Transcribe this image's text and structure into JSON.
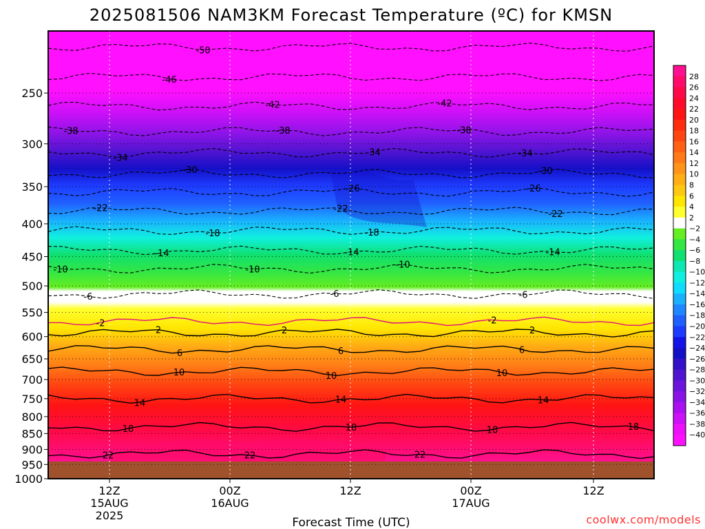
{
  "chart_data": {
    "type": "heatmap",
    "title": "2025081506 NAM3KM Forecast Temperature (ºC) for KMSN",
    "xlabel": "Forecast Time (UTC)",
    "ylabel": "",
    "y_scale": "log-pressure",
    "ylim": [
      1000,
      200
    ],
    "y_ticks": [
      "250",
      "300",
      "350",
      "400",
      "450",
      "500",
      "550",
      "600",
      "650",
      "700",
      "750",
      "800",
      "850",
      "900",
      "950",
      "1000"
    ],
    "x_ticks": [
      {
        "label": "12Z",
        "date": "15AUG",
        "year": "2025"
      },
      {
        "label": "00Z",
        "date": "16AUG",
        "year": ""
      },
      {
        "label": "12Z",
        "date": "",
        "year": ""
      },
      {
        "label": "00Z",
        "date": "17AUG",
        "year": ""
      },
      {
        "label": "12Z",
        "date": "",
        "year": ""
      }
    ],
    "grid": true,
    "colorbar": {
      "labels": [
        "28",
        "26",
        "24",
        "22",
        "20",
        "18",
        "16",
        "14",
        "12",
        "10",
        "8",
        "6",
        "4",
        "2",
        "−2",
        "−4",
        "−6",
        "−8",
        "−10",
        "−12",
        "−14",
        "−16",
        "−18",
        "−20",
        "−22",
        "−24",
        "−26",
        "−28",
        "−30",
        "−32",
        "−34",
        "−36",
        "−38",
        "−40"
      ],
      "colors": [
        "#ff1090",
        "#ff0c6a",
        "#ff0a48",
        "#ff0a2a",
        "#ff1414",
        "#ff2c10",
        "#ff4612",
        "#ff6014",
        "#ff7a16",
        "#ff9418",
        "#ffae14",
        "#ffc810",
        "#ffe600",
        "#ffff30",
        "#ffffff",
        "#66ee22",
        "#33e644",
        "#10e070",
        "#10e8b4",
        "#10f0e0",
        "#10dcff",
        "#1ab0ff",
        "#1e86ff",
        "#2060ff",
        "#1e3cff",
        "#1414e8",
        "#1410c8",
        "#3410c8",
        "#5014d0",
        "#6c14dc",
        "#8a14e6",
        "#aa10f0",
        "#cc10f8",
        "#ee10fa",
        "#ff10ff"
      ]
    },
    "contour_labels": [
      "-50",
      "-46",
      "-42",
      "-38",
      "-34",
      "-30",
      "-26",
      "-22",
      "-18",
      "-14",
      "-10",
      "-6",
      "-2",
      "2",
      "6",
      "10",
      "14",
      "18",
      "22"
    ],
    "series": []
  },
  "watermark": "coolwx.com/models"
}
